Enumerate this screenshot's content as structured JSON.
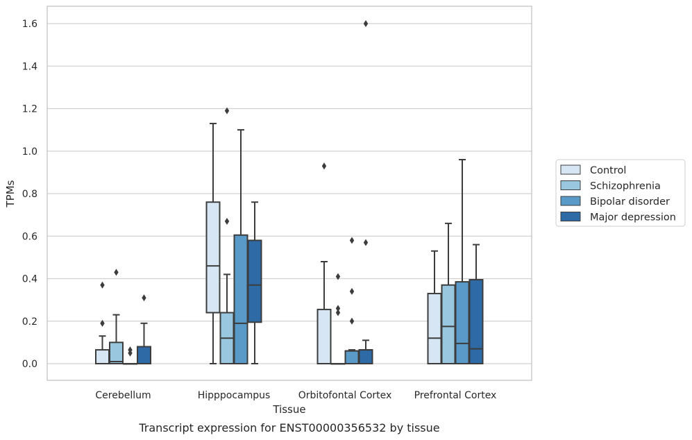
{
  "chart_data": {
    "type": "box",
    "caption": "Transcript expression for ENST00000356532 by tissue",
    "xlabel": "Tissue",
    "ylabel": "TPMs",
    "ylim": [
      -0.08,
      1.68
    ],
    "yticks": [
      "0.0",
      "0.2",
      "0.4",
      "0.6",
      "0.8",
      "1.0",
      "1.2",
      "1.4",
      "1.6"
    ],
    "grid": true,
    "legend_position": "right",
    "categories": [
      "Cerebellum",
      "Hipppocampus",
      "Orbitofontal Cortex",
      "Prefrontal Cortex"
    ],
    "series": [
      {
        "name": "Control",
        "color": "#d6e6f4",
        "boxes": [
          {
            "q1": 0.0,
            "median": 0.0,
            "q3": 0.065,
            "whisker_low": 0.0,
            "whisker_high": 0.13,
            "outliers": [
              0.19,
              0.37
            ]
          },
          {
            "q1": 0.24,
            "median": 0.46,
            "q3": 0.76,
            "whisker_low": 0.0,
            "whisker_high": 1.13,
            "outliers": []
          },
          {
            "q1": 0.0,
            "median": 0.0,
            "q3": 0.255,
            "whisker_low": 0.0,
            "whisker_high": 0.48,
            "outliers": [
              0.93
            ]
          },
          {
            "q1": 0.0,
            "median": 0.12,
            "q3": 0.33,
            "whisker_low": 0.0,
            "whisker_high": 0.53,
            "outliers": []
          }
        ]
      },
      {
        "name": "Schizophrenia",
        "color": "#9ac7e0",
        "boxes": [
          {
            "q1": 0.0,
            "median": 0.01,
            "q3": 0.1,
            "whisker_low": 0.0,
            "whisker_high": 0.23,
            "outliers": [
              0.43
            ]
          },
          {
            "q1": 0.0,
            "median": 0.12,
            "q3": 0.24,
            "whisker_low": 0.0,
            "whisker_high": 0.42,
            "outliers": [
              0.67,
              1.19
            ]
          },
          {
            "q1": 0.0,
            "median": 0.0,
            "q3": 0.0,
            "whisker_low": 0.0,
            "whisker_high": 0.0,
            "outliers": [
              0.24,
              0.26,
              0.41
            ]
          },
          {
            "q1": 0.0,
            "median": 0.175,
            "q3": 0.37,
            "whisker_low": 0.0,
            "whisker_high": 0.66,
            "outliers": []
          }
        ]
      },
      {
        "name": "Bipolar disorder",
        "color": "#5a9ac8",
        "boxes": [
          {
            "q1": 0.0,
            "median": 0.0,
            "q3": 0.0,
            "whisker_low": 0.0,
            "whisker_high": 0.0,
            "outliers": [
              0.05,
              0.065
            ]
          },
          {
            "q1": 0.0,
            "median": 0.19,
            "q3": 0.605,
            "whisker_low": 0.0,
            "whisker_high": 1.1,
            "outliers": []
          },
          {
            "q1": 0.0,
            "median": 0.06,
            "q3": 0.06,
            "whisker_low": 0.0,
            "whisker_high": 0.065,
            "outliers": [
              0.2,
              0.34,
              0.58
            ]
          },
          {
            "q1": 0.0,
            "median": 0.095,
            "q3": 0.385,
            "whisker_low": 0.0,
            "whisker_high": 0.96,
            "outliers": []
          }
        ]
      },
      {
        "name": "Major depression",
        "color": "#2d6aa6",
        "boxes": [
          {
            "q1": 0.0,
            "median": 0.0,
            "q3": 0.08,
            "whisker_low": 0.0,
            "whisker_high": 0.19,
            "outliers": [
              0.31
            ]
          },
          {
            "q1": 0.195,
            "median": 0.37,
            "q3": 0.58,
            "whisker_low": 0.0,
            "whisker_high": 0.76,
            "outliers": []
          },
          {
            "q1": 0.0,
            "median": 0.065,
            "q3": 0.065,
            "whisker_low": 0.0,
            "whisker_high": 0.11,
            "outliers": [
              0.57,
              1.6
            ]
          },
          {
            "q1": 0.0,
            "median": 0.07,
            "q3": 0.395,
            "whisker_low": 0.0,
            "whisker_high": 0.56,
            "outliers": []
          }
        ]
      }
    ]
  }
}
